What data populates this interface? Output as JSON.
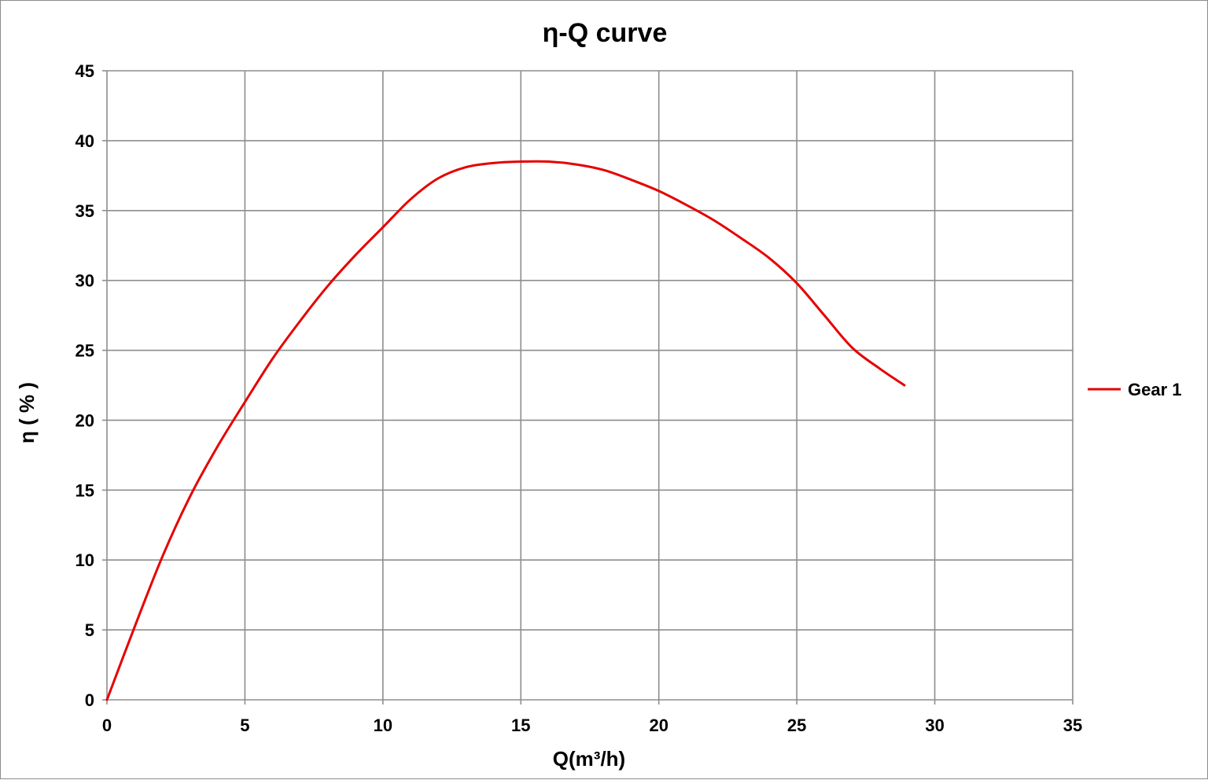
{
  "chart_data": {
    "type": "line",
    "title": "η-Q  curve",
    "xlabel": "Q(m³/h)",
    "ylabel": "η ( % )",
    "xlim": [
      0,
      35
    ],
    "ylim": [
      0,
      45
    ],
    "x_ticks": [
      0,
      5,
      10,
      15,
      20,
      25,
      30,
      35
    ],
    "y_ticks": [
      0,
      5,
      10,
      15,
      20,
      25,
      30,
      35,
      40,
      45
    ],
    "grid": true,
    "legend_position": "right",
    "series": [
      {
        "name": "Gear 1",
        "color": "#e60000",
        "x": [
          0,
          1,
          2,
          3,
          4,
          5,
          6,
          7,
          8,
          9,
          10,
          11,
          12,
          13,
          14,
          15,
          16,
          17,
          18,
          19,
          20,
          21,
          22,
          23,
          24,
          25,
          26,
          27,
          28,
          28.9
        ],
        "y": [
          0,
          5.2,
          10.2,
          14.5,
          18.1,
          21.3,
          24.4,
          27.1,
          29.6,
          31.8,
          33.8,
          35.8,
          37.3,
          38.1,
          38.4,
          38.5,
          38.5,
          38.3,
          37.9,
          37.2,
          36.4,
          35.4,
          34.3,
          33.0,
          31.6,
          29.8,
          27.5,
          25.2,
          23.7,
          22.5
        ]
      }
    ]
  }
}
